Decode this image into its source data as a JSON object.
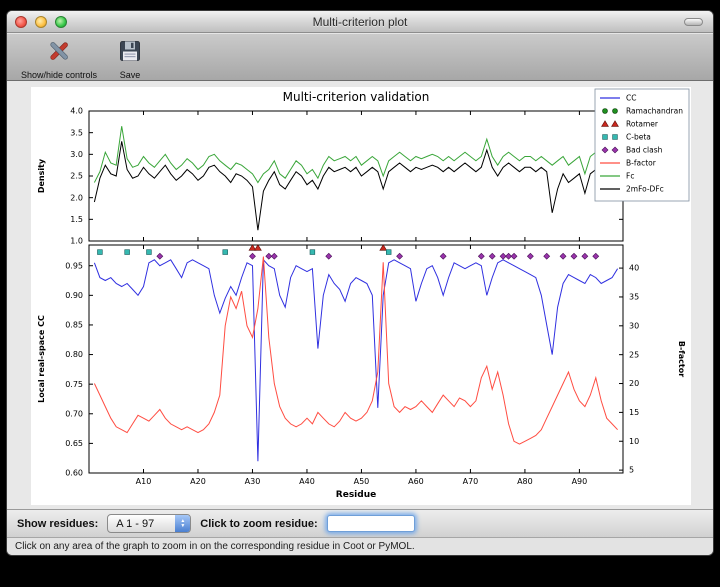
{
  "window": {
    "title": "Multi-criterion plot"
  },
  "toolbar": {
    "show_hide_label": "Show/hide controls",
    "save_label": "Save"
  },
  "controls": {
    "show_residues_label": "Show residues:",
    "chain_range": "A  1 - 97",
    "zoom_label": "Click to zoom residue:",
    "zoom_value": ""
  },
  "icons": {
    "stepper_up": "▲",
    "stepper_down": "▼"
  },
  "status_bar": "Click on any area of the graph to zoom in on the corresponding residue in Coot or PyMOL.",
  "chart_data": {
    "type": "line",
    "title": "Multi-criterion validation",
    "xlabel": "Residue",
    "x_range": [
      0,
      98
    ],
    "x_ticks": [
      {
        "v": 10,
        "t": "A10"
      },
      {
        "v": 20,
        "t": "A20"
      },
      {
        "v": 30,
        "t": "A30"
      },
      {
        "v": 40,
        "t": "A40"
      },
      {
        "v": 50,
        "t": "A50"
      },
      {
        "v": 60,
        "t": "A60"
      },
      {
        "v": 70,
        "t": "A70"
      },
      {
        "v": 80,
        "t": "A80"
      },
      {
        "v": 90,
        "t": "A90"
      }
    ],
    "top": {
      "ylabel": "Density",
      "ylim": [
        1.0,
        4.0
      ],
      "yticks": [
        {
          "v": 1.0,
          "t": "1.0"
        },
        {
          "v": 1.5,
          "t": "1.5"
        },
        {
          "v": 2.0,
          "t": "2.0"
        },
        {
          "v": 2.5,
          "t": "2.5"
        },
        {
          "v": 3.0,
          "t": "3.0"
        },
        {
          "v": 3.5,
          "t": "3.5"
        },
        {
          "v": 4.0,
          "t": "4.0"
        }
      ],
      "series": [
        {
          "name": "Fc",
          "color": "#3aa63a",
          "values": [
            2.35,
            2.6,
            3.05,
            2.8,
            2.75,
            3.65,
            2.9,
            2.7,
            2.75,
            2.95,
            2.8,
            2.7,
            2.85,
            3.0,
            2.8,
            2.65,
            2.75,
            2.9,
            2.8,
            2.65,
            2.75,
            2.95,
            3.0,
            2.85,
            2.75,
            2.65,
            2.8,
            2.75,
            2.65,
            2.55,
            2.35,
            2.55,
            2.65,
            2.85,
            2.55,
            2.45,
            2.65,
            2.85,
            2.75,
            2.55,
            2.65,
            2.45,
            2.75,
            2.95,
            2.85,
            2.9,
            2.95,
            2.85,
            2.95,
            2.75,
            2.85,
            2.95,
            2.85,
            2.5,
            2.85,
            2.95,
            3.05,
            2.95,
            2.85,
            2.95,
            2.9,
            2.95,
            3.0,
            2.95,
            2.85,
            2.95,
            2.85,
            2.95,
            3.05,
            2.95,
            2.85,
            2.95,
            3.35,
            2.95,
            2.75,
            2.95,
            3.05,
            2.95,
            2.85,
            2.95,
            2.95,
            2.85,
            2.95,
            2.85,
            2.75,
            2.85,
            2.95,
            2.75,
            2.85,
            2.95,
            2.55,
            2.95,
            3.05,
            2.6,
            2.95,
            3.15,
            2.95
          ]
        },
        {
          "name": "2mFo-DFc",
          "color": "#000000",
          "values": [
            1.9,
            2.45,
            2.75,
            2.55,
            2.5,
            3.3,
            2.65,
            2.45,
            2.5,
            2.7,
            2.55,
            2.45,
            2.6,
            2.75,
            2.55,
            2.4,
            2.5,
            2.65,
            2.55,
            2.4,
            2.5,
            2.7,
            2.75,
            2.6,
            2.5,
            2.35,
            2.55,
            2.5,
            2.4,
            2.25,
            1.25,
            2.15,
            2.4,
            2.6,
            2.3,
            2.2,
            2.4,
            2.6,
            2.5,
            2.3,
            2.4,
            2.2,
            2.5,
            2.7,
            2.6,
            2.65,
            2.7,
            2.6,
            2.7,
            2.5,
            2.6,
            2.7,
            2.6,
            2.2,
            2.6,
            2.7,
            2.8,
            2.7,
            2.6,
            2.7,
            2.65,
            2.7,
            2.75,
            2.7,
            2.6,
            2.7,
            2.6,
            2.7,
            2.8,
            2.7,
            2.6,
            2.7,
            3.1,
            2.7,
            2.5,
            2.7,
            2.8,
            2.7,
            2.6,
            2.7,
            2.7,
            2.6,
            2.7,
            2.6,
            1.65,
            2.2,
            2.55,
            2.35,
            2.45,
            2.55,
            2.1,
            2.55,
            2.65,
            2.15,
            2.55,
            2.75,
            2.55
          ]
        }
      ]
    },
    "bottom": {
      "ylabel": "Local real-space CC",
      "ylim": [
        0.6,
        0.985
      ],
      "yticks": [
        {
          "v": 0.6,
          "t": "0.60"
        },
        {
          "v": 0.65,
          "t": "0.65"
        },
        {
          "v": 0.7,
          "t": "0.70"
        },
        {
          "v": 0.75,
          "t": "0.75"
        },
        {
          "v": 0.8,
          "t": "0.80"
        },
        {
          "v": 0.85,
          "t": "0.85"
        },
        {
          "v": 0.9,
          "t": "0.90"
        },
        {
          "v": 0.95,
          "t": "0.95"
        }
      ],
      "y2label": "B-factor",
      "y2lim": [
        4.5,
        44
      ],
      "y2ticks": [
        {
          "v": 5,
          "t": "5"
        },
        {
          "v": 10,
          "t": "10"
        },
        {
          "v": 15,
          "t": "15"
        },
        {
          "v": 20,
          "t": "20"
        },
        {
          "v": 25,
          "t": "25"
        },
        {
          "v": 30,
          "t": "30"
        },
        {
          "v": 35,
          "t": "35"
        },
        {
          "v": 40,
          "t": "40"
        }
      ],
      "series": [
        {
          "name": "CC",
          "axis": "left",
          "color": "#3030e0",
          "values": [
            0.955,
            0.93,
            0.925,
            0.93,
            0.92,
            0.915,
            0.92,
            0.91,
            0.9,
            0.915,
            0.955,
            0.96,
            0.95,
            0.955,
            0.96,
            0.945,
            0.93,
            0.955,
            0.96,
            0.955,
            0.95,
            0.945,
            0.9,
            0.87,
            0.895,
            0.915,
            0.9,
            0.93,
            0.955,
            0.95,
            0.62,
            0.96,
            0.95,
            0.945,
            0.9,
            0.88,
            0.93,
            0.95,
            0.945,
            0.94,
            0.945,
            0.81,
            0.9,
            0.935,
            0.92,
            0.91,
            0.89,
            0.92,
            0.93,
            0.925,
            0.92,
            0.9,
            0.71,
            0.9,
            0.955,
            0.96,
            0.955,
            0.95,
            0.945,
            0.89,
            0.92,
            0.945,
            0.95,
            0.93,
            0.9,
            0.93,
            0.955,
            0.95,
            0.945,
            0.95,
            0.955,
            0.95,
            0.9,
            0.93,
            0.955,
            0.96,
            0.955,
            0.95,
            0.945,
            0.94,
            0.935,
            0.93,
            0.9,
            0.85,
            0.8,
            0.88,
            0.92,
            0.935,
            0.93,
            0.925,
            0.92,
            0.935,
            0.93,
            0.92,
            0.925,
            0.93,
            0.945
          ]
        },
        {
          "name": "B-factor",
          "axis": "right",
          "color": "#ff4d42",
          "values": [
            20,
            18,
            16,
            14,
            12.5,
            12,
            11.5,
            13,
            14.5,
            14,
            13.5,
            14.5,
            15.5,
            14,
            13,
            12.5,
            12,
            12.5,
            12,
            11.5,
            12,
            13,
            15,
            18,
            30,
            35,
            33,
            36,
            30,
            28,
            33,
            42,
            28,
            20,
            16,
            14,
            13,
            12.5,
            13,
            14,
            13,
            15,
            14,
            13,
            12.5,
            13.5,
            15,
            14,
            13.5,
            14,
            15,
            17,
            22,
            41,
            20,
            16,
            15,
            16,
            15.5,
            16,
            17,
            16,
            15,
            16.5,
            18,
            17,
            16,
            17.5,
            17,
            16,
            17,
            21,
            23,
            19,
            22,
            18,
            13,
            10,
            9.5,
            10,
            10.5,
            11,
            12,
            14,
            16,
            18,
            20,
            22,
            19,
            17,
            16,
            18,
            21,
            17,
            14,
            13,
            12
          ]
        }
      ],
      "markers": [
        {
          "name": "Ramachandran",
          "shape": "circle",
          "color": "#1f8f1f",
          "y": 0.98,
          "x": []
        },
        {
          "name": "Rotamer",
          "shape": "triangle",
          "color": "#c8281e",
          "y": 0.98,
          "x": [
            30,
            31,
            54
          ]
        },
        {
          "name": "C-beta",
          "shape": "square",
          "color": "#35b8b0",
          "y": 0.973,
          "x": [
            2,
            7,
            11,
            25,
            41,
            55
          ]
        },
        {
          "name": "Bad clash",
          "shape": "diamond",
          "color": "#9933aa",
          "y": 0.966,
          "x": [
            13,
            30,
            33,
            34,
            44,
            57,
            65,
            72,
            74,
            76,
            77,
            78,
            81,
            84,
            87,
            89,
            91,
            93
          ]
        }
      ]
    },
    "legend": [
      {
        "label": "CC",
        "type": "line",
        "color": "#3030e0"
      },
      {
        "label": "Ramachandran",
        "type": "circle",
        "color": "#1f8f1f"
      },
      {
        "label": "Rotamer",
        "type": "triangle",
        "color": "#c8281e"
      },
      {
        "label": "C-beta",
        "type": "square",
        "color": "#35b8b0"
      },
      {
        "label": "Bad clash",
        "type": "diamond",
        "color": "#9933aa"
      },
      {
        "label": "B-factor",
        "type": "line",
        "color": "#ff4d42"
      },
      {
        "label": "Fc",
        "type": "line",
        "color": "#3aa63a"
      },
      {
        "label": "2mFo-DFc",
        "type": "line",
        "color": "#000000"
      }
    ]
  }
}
